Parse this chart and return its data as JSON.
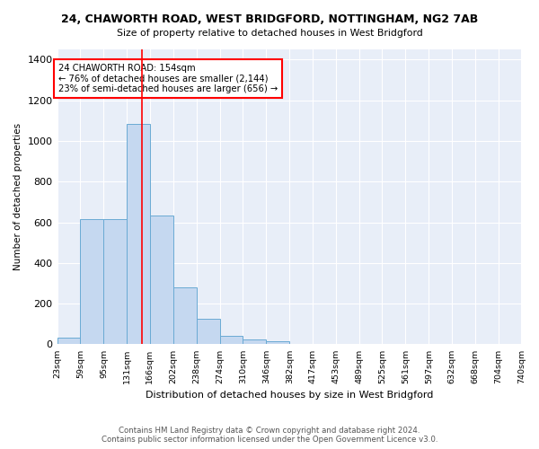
{
  "title": "24, CHAWORTH ROAD, WEST BRIDGFORD, NOTTINGHAM, NG2 7AB",
  "subtitle": "Size of property relative to detached houses in West Bridgford",
  "xlabel": "Distribution of detached houses by size in West Bridgford",
  "ylabel": "Number of detached properties",
  "footnote1": "Contains HM Land Registry data © Crown copyright and database right 2024.",
  "footnote2": "Contains public sector information licensed under the Open Government Licence v3.0.",
  "bar_color": "#c5d8f0",
  "bar_edge_color": "#6aaad4",
  "red_line_x": 154,
  "annotation_title": "24 CHAWORTH ROAD: 154sqm",
  "annotation_line1": "← 76% of detached houses are smaller (2,144)",
  "annotation_line2": "23% of semi-detached houses are larger (656) →",
  "bin_edges": [
    23,
    59,
    95,
    131,
    166,
    202,
    238,
    274,
    310,
    346,
    382,
    417,
    453,
    489,
    525,
    561,
    597,
    632,
    668,
    704,
    740
  ],
  "counts": [
    35,
    615,
    615,
    1085,
    635,
    280,
    125,
    42,
    25,
    15,
    0,
    0,
    0,
    0,
    0,
    0,
    0,
    0,
    0,
    0
  ],
  "ylim": [
    0,
    1450
  ],
  "yticks": [
    0,
    200,
    400,
    600,
    800,
    1000,
    1200,
    1400
  ],
  "background_color": "#e8eef8"
}
